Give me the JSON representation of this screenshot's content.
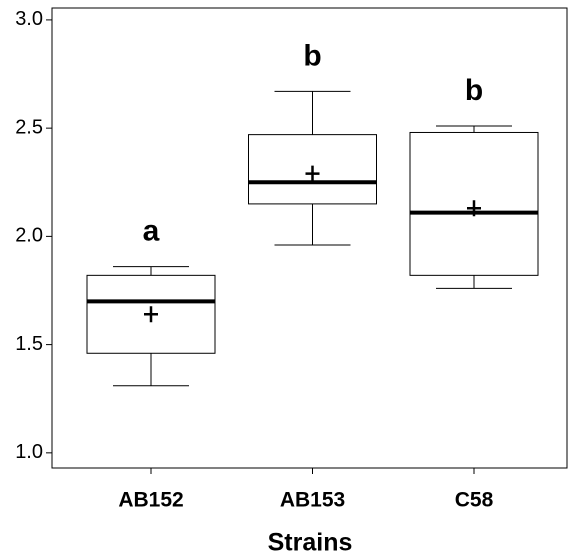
{
  "chart_data": {
    "type": "box",
    "x_label": "Strains",
    "categories": [
      "AB152",
      "AB153",
      "C58"
    ],
    "whisker_low": [
      1.31,
      1.96,
      1.76
    ],
    "q1": [
      1.46,
      2.15,
      1.82
    ],
    "median": [
      1.7,
      2.25,
      2.11
    ],
    "q3": [
      1.82,
      2.47,
      2.48
    ],
    "whisker_high": [
      1.86,
      2.67,
      2.51
    ],
    "mean": [
      1.64,
      2.29,
      2.13
    ],
    "annotations": [
      "a",
      "b",
      "b"
    ],
    "ylim": [
      0.93,
      3.055
    ],
    "yticks": [
      {
        "value": 1,
        "label": "1.0"
      },
      1.5,
      {
        "value": 2,
        "label": "2.0"
      },
      2.5,
      {
        "value": 3,
        "label": "3.0"
      }
    ],
    "color": "#000000"
  }
}
